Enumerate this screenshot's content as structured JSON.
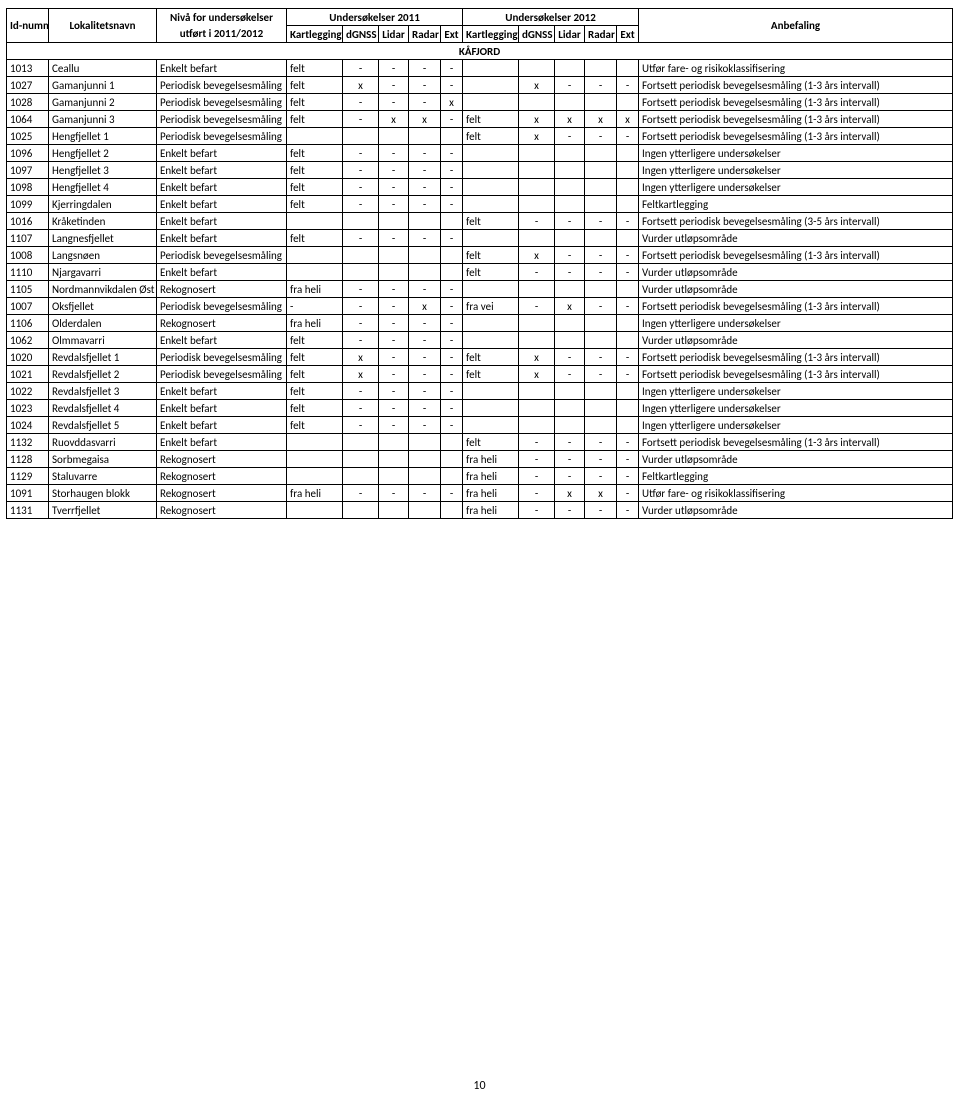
{
  "header": {
    "id": "Id-nummer",
    "loc": "Lokalitetsnavn",
    "niv_l1": "Nivå for undersøkelser",
    "niv_l2": "utført i 2011/2012",
    "u2011": "Undersøkelser 2011",
    "u2012": "Undersøkelser 2012",
    "kart": "Kartlegging",
    "dgnss": "dGNSS",
    "lidar": "Lidar",
    "radar": "Radar",
    "ext": "Ext",
    "anb": "Anbefaling"
  },
  "section": "KÅFJORD",
  "rows": [
    {
      "id": "1013",
      "loc": "Ceallu",
      "niv": "Enkelt befart",
      "k1": "felt",
      "d1": "-",
      "l1": "-",
      "r1": "-",
      "e1": "-",
      "k2": "",
      "d2": "",
      "l2": "",
      "r2": "",
      "e2": "",
      "anb": "Utfør fare- og risikoklassifisering"
    },
    {
      "id": "1027",
      "loc": "Gamanjunni 1",
      "niv": "Periodisk bevegelsesmåling",
      "k1": "felt",
      "d1": "x",
      "l1": "-",
      "r1": "-",
      "e1": "-",
      "k2": "",
      "d2": "x",
      "l2": "-",
      "r2": "-",
      "e2": "-",
      "anb": "Fortsett periodisk bevegelsesmåling (1-3 års intervall)"
    },
    {
      "id": "1028",
      "loc": "Gamanjunni 2",
      "niv": "Periodisk bevegelsesmåling",
      "k1": "felt",
      "d1": "-",
      "l1": "-",
      "r1": "-",
      "e1": "x",
      "k2": "",
      "d2": "",
      "l2": "",
      "r2": "",
      "e2": "",
      "anb": "Fortsett periodisk bevegelsesmåling (1-3 års intervall)"
    },
    {
      "id": "1064",
      "loc": "Gamanjunni 3",
      "niv": "Periodisk bevegelsesmåling",
      "k1": "felt",
      "d1": "-",
      "l1": "x",
      "r1": "x",
      "e1": "-",
      "k2": "felt",
      "d2": "x",
      "l2": "x",
      "r2": "x",
      "e2": "x",
      "anb": "Fortsett periodisk bevegelsesmåling (1-3 års intervall)"
    },
    {
      "id": "1025",
      "loc": "Hengfjellet 1",
      "niv": "Periodisk bevegelsesmåling",
      "k1": "",
      "d1": "",
      "l1": "",
      "r1": "",
      "e1": "",
      "k2": "felt",
      "d2": "x",
      "l2": "-",
      "r2": "-",
      "e2": "-",
      "anb": "Fortsett periodisk bevegelsesmåling (1-3 års intervall)"
    },
    {
      "id": "1096",
      "loc": "Hengfjellet 2",
      "niv": "Enkelt befart",
      "k1": "felt",
      "d1": "-",
      "l1": "-",
      "r1": "-",
      "e1": "-",
      "k2": "",
      "d2": "",
      "l2": "",
      "r2": "",
      "e2": "",
      "anb": "Ingen ytterligere undersøkelser"
    },
    {
      "id": "1097",
      "loc": "Hengfjellet 3",
      "niv": "Enkelt befart",
      "k1": "felt",
      "d1": "-",
      "l1": "-",
      "r1": "-",
      "e1": "-",
      "k2": "",
      "d2": "",
      "l2": "",
      "r2": "",
      "e2": "",
      "anb": "Ingen ytterligere undersøkelser"
    },
    {
      "id": "1098",
      "loc": "Hengfjellet 4",
      "niv": "Enkelt befart",
      "k1": "felt",
      "d1": "-",
      "l1": "-",
      "r1": "-",
      "e1": "-",
      "k2": "",
      "d2": "",
      "l2": "",
      "r2": "",
      "e2": "",
      "anb": "Ingen ytterligere undersøkelser"
    },
    {
      "id": "1099",
      "loc": "Kjerringdalen",
      "niv": "Enkelt befart",
      "k1": "felt",
      "d1": "-",
      "l1": "-",
      "r1": "-",
      "e1": "-",
      "k2": "",
      "d2": "",
      "l2": "",
      "r2": "",
      "e2": "",
      "anb": "Feltkartlegging"
    },
    {
      "id": "1016",
      "loc": "Kråketinden",
      "niv": "Enkelt befart",
      "k1": "",
      "d1": "",
      "l1": "",
      "r1": "",
      "e1": "",
      "k2": "felt",
      "d2": "-",
      "l2": "-",
      "r2": "-",
      "e2": "-",
      "anb": "Fortsett periodisk bevegelsesmåling (3-5 års intervall)"
    },
    {
      "id": "1107",
      "loc": "Langnesfjellet",
      "niv": "Enkelt befart",
      "k1": "felt",
      "d1": "-",
      "l1": "-",
      "r1": "-",
      "e1": "-",
      "k2": "",
      "d2": "",
      "l2": "",
      "r2": "",
      "e2": "",
      "anb": "Vurder utløpsområde"
    },
    {
      "id": "1008",
      "loc": "Langsnøen",
      "niv": "Periodisk bevegelsesmåling",
      "k1": "",
      "d1": "",
      "l1": "",
      "r1": "",
      "e1": "",
      "k2": "felt",
      "d2": "x",
      "l2": "-",
      "r2": "-",
      "e2": "-",
      "anb": "Fortsett periodisk bevegelsesmåling (1-3 års intervall)"
    },
    {
      "id": "1110",
      "loc": "Njargavarri",
      "niv": "Enkelt befart",
      "k1": "",
      "d1": "",
      "l1": "",
      "r1": "",
      "e1": "",
      "k2": "felt",
      "d2": "-",
      "l2": "-",
      "r2": "-",
      "e2": "-",
      "anb": "Vurder utløpsområde"
    },
    {
      "id": "1105",
      "loc": "Nordmannvikdalen Øst",
      "niv": "Rekognosert",
      "k1": "fra heli",
      "d1": "-",
      "l1": "-",
      "r1": "-",
      "e1": "-",
      "k2": "",
      "d2": "",
      "l2": "",
      "r2": "",
      "e2": "",
      "anb": "Vurder utløpsområde"
    },
    {
      "id": "1007",
      "loc": "Oksfjellet",
      "niv": "Periodisk bevegelsesmåling",
      "k1": "-",
      "d1": "-",
      "l1": "-",
      "r1": "x",
      "e1": "-",
      "k2": "fra vei",
      "d2": "-",
      "l2": "x",
      "r2": "-",
      "e2": "-",
      "anb": "Fortsett periodisk bevegelsesmåling (1-3 års intervall)"
    },
    {
      "id": "1106",
      "loc": "Olderdalen",
      "niv": "Rekognosert",
      "k1": "fra heli",
      "d1": "-",
      "l1": "-",
      "r1": "-",
      "e1": "-",
      "k2": "",
      "d2": "",
      "l2": "",
      "r2": "",
      "e2": "",
      "anb": "Ingen ytterligere undersøkelser"
    },
    {
      "id": "1062",
      "loc": "Olmmavarri",
      "niv": "Enkelt befart",
      "k1": "felt",
      "d1": "-",
      "l1": "-",
      "r1": "-",
      "e1": "-",
      "k2": "",
      "d2": "",
      "l2": "",
      "r2": "",
      "e2": "",
      "anb": "Vurder utløpsområde"
    },
    {
      "id": "1020",
      "loc": "Revdalsfjellet 1",
      "niv": "Periodisk bevegelsesmåling",
      "k1": "felt",
      "d1": "x",
      "l1": "-",
      "r1": "-",
      "e1": "-",
      "k2": "felt",
      "d2": "x",
      "l2": "-",
      "r2": "-",
      "e2": "-",
      "anb": "Fortsett periodisk bevegelsesmåling (1-3 års intervall)"
    },
    {
      "id": "1021",
      "loc": "Revdalsfjellet 2",
      "niv": "Periodisk bevegelsesmåling",
      "k1": "felt",
      "d1": "x",
      "l1": "-",
      "r1": "-",
      "e1": "-",
      "k2": "felt",
      "d2": "x",
      "l2": "-",
      "r2": "-",
      "e2": "-",
      "anb": "Fortsett periodisk bevegelsesmåling (1-3 års intervall)"
    },
    {
      "id": "1022",
      "loc": "Revdalsfjellet 3",
      "niv": "Enkelt befart",
      "k1": "felt",
      "d1": "-",
      "l1": "-",
      "r1": "-",
      "e1": "-",
      "k2": "",
      "d2": "",
      "l2": "",
      "r2": "",
      "e2": "",
      "anb": "Ingen ytterligere undersøkelser"
    },
    {
      "id": "1023",
      "loc": "Revdalsfjellet 4",
      "niv": "Enkelt befart",
      "k1": "felt",
      "d1": "-",
      "l1": "-",
      "r1": "-",
      "e1": "-",
      "k2": "",
      "d2": "",
      "l2": "",
      "r2": "",
      "e2": "",
      "anb": "Ingen ytterligere undersøkelser"
    },
    {
      "id": "1024",
      "loc": "Revdalsfjellet 5",
      "niv": "Enkelt befart",
      "k1": "felt",
      "d1": "-",
      "l1": "-",
      "r1": "-",
      "e1": "-",
      "k2": "",
      "d2": "",
      "l2": "",
      "r2": "",
      "e2": "",
      "anb": "Ingen ytterligere undersøkelser"
    },
    {
      "id": "1132",
      "loc": "Ruovddasvarri",
      "niv": "Enkelt befart",
      "k1": "",
      "d1": "",
      "l1": "",
      "r1": "",
      "e1": "",
      "k2": "felt",
      "d2": "-",
      "l2": "-",
      "r2": "-",
      "e2": "-",
      "anb": "Fortsett periodisk bevegelsesmåling (1-3 års intervall)"
    },
    {
      "id": "1128",
      "loc": "Sorbmegaisa",
      "niv": "Rekognosert",
      "k1": "",
      "d1": "",
      "l1": "",
      "r1": "",
      "e1": "",
      "k2": "fra heli",
      "d2": "-",
      "l2": "-",
      "r2": "-",
      "e2": "-",
      "anb": "Vurder utløpsområde"
    },
    {
      "id": "1129",
      "loc": "Staluvarre",
      "niv": "Rekognosert",
      "k1": "",
      "d1": "",
      "l1": "",
      "r1": "",
      "e1": "",
      "k2": "fra heli",
      "d2": "-",
      "l2": "-",
      "r2": "-",
      "e2": "-",
      "anb": "Feltkartlegging"
    },
    {
      "id": "1091",
      "loc": "Storhaugen blokk",
      "niv": "Rekognosert",
      "k1": "fra heli",
      "d1": "-",
      "l1": "-",
      "r1": "-",
      "e1": "-",
      "k2": "fra heli",
      "d2": "-",
      "l2": "x",
      "r2": "x",
      "e2": "-",
      "anb": "Utfør fare- og risikoklassifisering"
    },
    {
      "id": "1131",
      "loc": "Tverrfjellet",
      "niv": "Rekognosert",
      "k1": "",
      "d1": "",
      "l1": "",
      "r1": "",
      "e1": "",
      "k2": "fra heli",
      "d2": "-",
      "l2": "-",
      "r2": "-",
      "e2": "-",
      "anb": "Vurder utløpsområde"
    }
  ],
  "pageno": "10"
}
